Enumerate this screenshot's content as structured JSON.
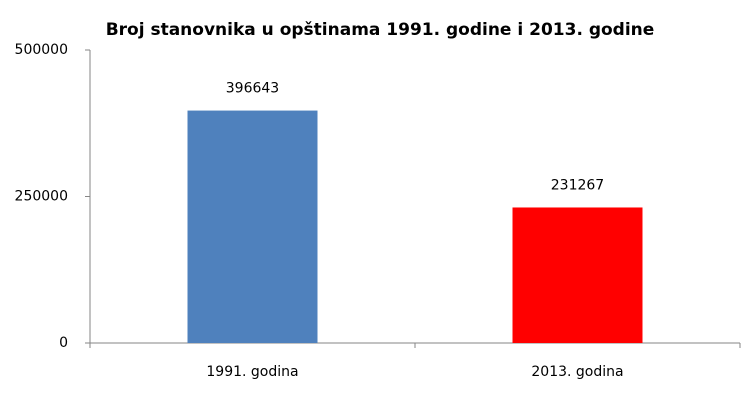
{
  "chart_data": {
    "type": "bar",
    "title": "Broj stanovnika u opštinama 1991. godine i 2013. godine",
    "categories": [
      "1991. godina",
      "2013. godina"
    ],
    "values": [
      396643,
      231267
    ],
    "colors": [
      "#4f81bd",
      "#ff0000"
    ],
    "ylim": [
      0,
      500000
    ],
    "yticks": [
      0,
      250000,
      500000
    ],
    "grid": false,
    "data_labels": true
  }
}
